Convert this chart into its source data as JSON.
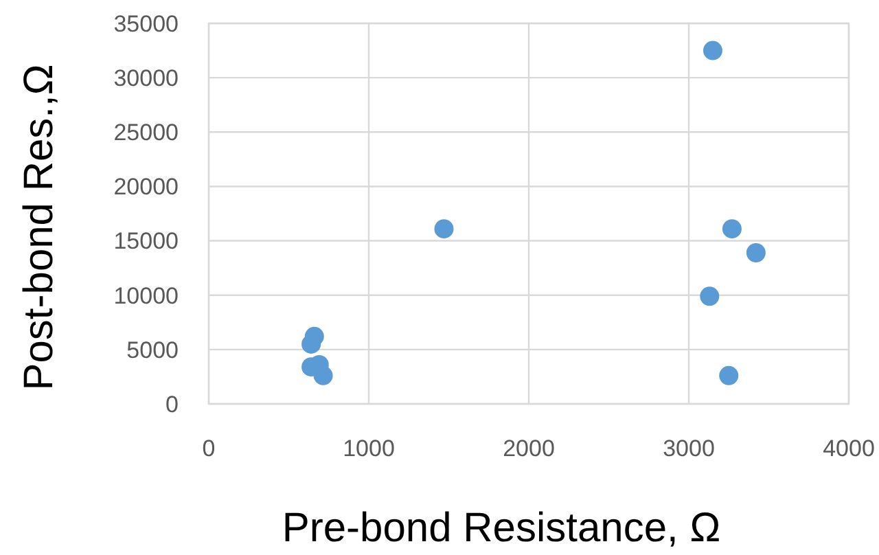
{
  "chart_data": {
    "type": "scatter",
    "xlabel": "Pre-bond Resistance, Ω",
    "ylabel": "Post-bond Res.,Ω",
    "x": [
      3150,
      1470,
      3270,
      3420,
      3130,
      3250,
      660,
      640,
      640,
      690,
      715
    ],
    "values": [
      32500,
      16100,
      16100,
      13900,
      9900,
      2600,
      6200,
      5500,
      3400,
      3600,
      2600
    ],
    "color": "#5b9bd5",
    "marker": "circle",
    "grid": true,
    "xlim": [
      0,
      4000
    ],
    "xticks": [
      0,
      1000,
      2000,
      3000,
      4000
    ],
    "ylim": [
      0,
      35000
    ],
    "yticks": [
      0,
      5000,
      10000,
      15000,
      20000,
      25000,
      30000,
      35000
    ]
  }
}
